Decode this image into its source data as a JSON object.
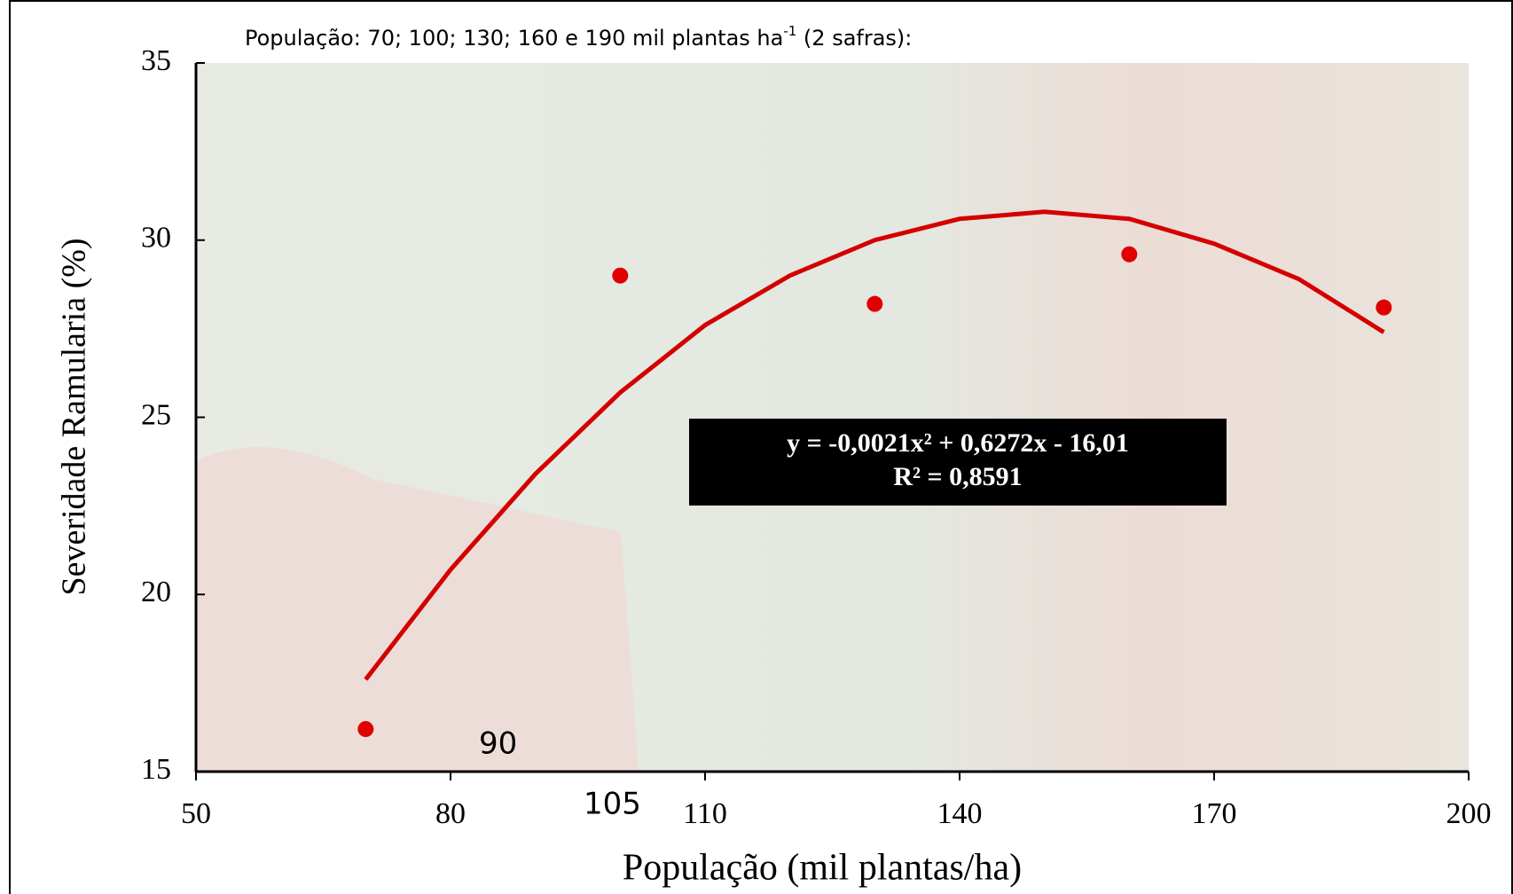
{
  "chart_data": {
    "type": "scatter",
    "title": {
      "main": "População: 70; 100; 130; 160 e 190 mil plantas ha",
      "sup": "-1",
      "tail": " (2 safras):"
    },
    "xlabel": "População (mil plantas/ha)",
    "ylabel": "Severidade Ramularia (%)",
    "x": [
      70,
      100,
      130,
      160,
      190
    ],
    "values": [
      16.2,
      29.0,
      28.2,
      29.6,
      28.1
    ],
    "color": "#e00000",
    "trendline": {
      "color": "#d40000",
      "x": [
        70,
        80,
        90,
        100,
        110,
        120,
        130,
        140,
        150,
        160,
        170,
        180,
        190
      ],
      "values": [
        17.6,
        20.7,
        23.4,
        25.7,
        27.6,
        29.0,
        30.0,
        30.6,
        30.8,
        30.6,
        29.9,
        28.9,
        27.4
      ]
    },
    "equation": [
      "y = -0,0021x² + 0,6272x - 16,01",
      "R² = 0,8591"
    ],
    "annotations": [
      "90",
      "105"
    ],
    "xlim": [
      50,
      200
    ],
    "xticks": [
      50,
      80,
      110,
      140,
      170,
      200
    ],
    "ylim": [
      15,
      35
    ],
    "yticks": [
      15,
      20,
      25,
      30,
      35
    ]
  }
}
